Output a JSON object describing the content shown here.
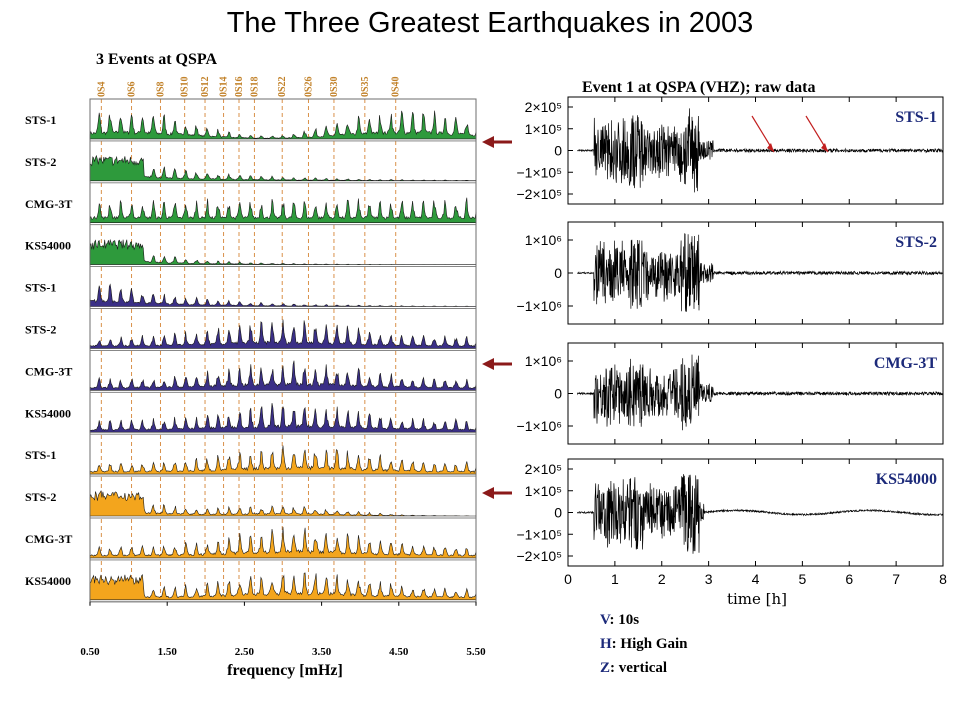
{
  "title": "The Three Greatest Earthquakes in 2003",
  "spectra": {
    "subtitle": "3 Events at QSPA",
    "xlabel": "frequency [mHz]",
    "x_ticks": [
      "0.50",
      "1.50",
      "2.50",
      "3.50",
      "4.50",
      "5.50"
    ],
    "xlim": [
      0.5,
      5.5
    ],
    "mode_labels": [
      {
        "label": "0S4",
        "f": 0.647
      },
      {
        "label": "0S6",
        "f": 1.038
      },
      {
        "label": "0S8",
        "f": 1.413
      },
      {
        "label": "0S10",
        "f": 1.726
      },
      {
        "label": "0S12",
        "f": 1.99
      },
      {
        "label": "0S14",
        "f": 2.23
      },
      {
        "label": "0S16",
        "f": 2.43
      },
      {
        "label": "0S18",
        "f": 2.63
      },
      {
        "label": "0S22",
        "f": 2.99
      },
      {
        "label": "0S26",
        "f": 3.33
      },
      {
        "label": "0S30",
        "f": 3.66
      },
      {
        "label": "0S35",
        "f": 4.06
      },
      {
        "label": "0S40",
        "f": 4.46
      }
    ],
    "events": [
      {
        "color": "#2e9a3c",
        "panels": [
          "STS-1",
          "STS-2",
          "CMG-3T",
          "KS54000"
        ]
      },
      {
        "color": "#3a2f86",
        "panels": [
          "STS-1",
          "STS-2",
          "CMG-3T",
          "KS54000"
        ]
      },
      {
        "color": "#f3a51d",
        "panels": [
          "STS-1",
          "STS-2",
          "CMG-3T",
          "KS54000"
        ]
      }
    ]
  },
  "waveforms": {
    "title": "Event 1 at QSPA (VHZ); raw data",
    "xlabel": "time  [h]",
    "x_ticks": [
      "0",
      "1",
      "2",
      "3",
      "4",
      "5",
      "6",
      "7",
      "8"
    ],
    "xlim": [
      0,
      8
    ],
    "panels": [
      {
        "instrument": "STS-1",
        "y_ticks": [
          "2×10⁵",
          "1×10⁵",
          "0",
          "−1×10⁵",
          "−2×10⁵"
        ]
      },
      {
        "instrument": "STS-2",
        "y_ticks": [
          "1×10⁶",
          "0",
          "−1×10⁶"
        ]
      },
      {
        "instrument": "CMG-3T",
        "y_ticks": [
          "1×10⁶",
          "0",
          "−1×10⁶"
        ]
      },
      {
        "instrument": "KS54000",
        "y_ticks": [
          "2×10⁵",
          "1×10⁵",
          "0",
          "−1×10⁵",
          "−2×10⁵"
        ]
      }
    ]
  },
  "legend": [
    {
      "key": "V",
      "value": ": 10s"
    },
    {
      "key": "H",
      "value": ": High Gain"
    },
    {
      "key": "Z",
      "value": ": vertical"
    }
  ],
  "colors": {
    "arrow": "#8b1a1a",
    "mode_line": "#d9914a",
    "trace": "#000000"
  }
}
